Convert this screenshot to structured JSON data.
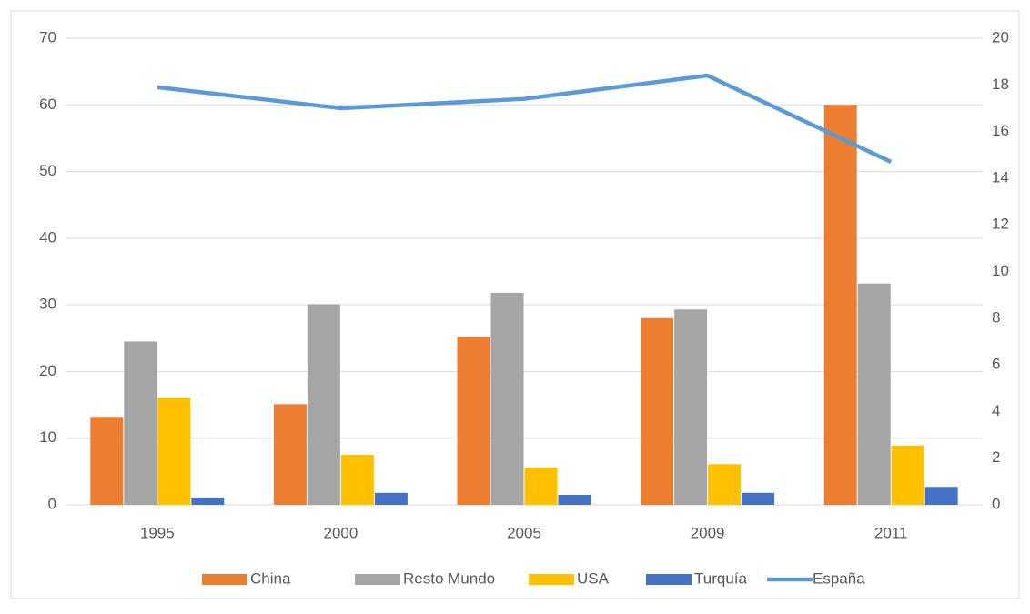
{
  "chart_data": {
    "type": "bar",
    "categories": [
      "1995",
      "2000",
      "2005",
      "2009",
      "2011"
    ],
    "series": [
      {
        "name": "China",
        "color": "#ed7d31",
        "values": [
          13.2,
          15.1,
          25.2,
          28,
          60
        ]
      },
      {
        "name": "Resto Mundo",
        "color": "#a5a5a5",
        "values": [
          24.5,
          30.1,
          31.8,
          29.3,
          33.2
        ]
      },
      {
        "name": "USA",
        "color": "#ffc000",
        "values": [
          16.1,
          7.5,
          5.6,
          6.1,
          8.9
        ]
      },
      {
        "name": "Turquía",
        "color": "#4472c4",
        "values": [
          1.1,
          1.8,
          1.5,
          1.8,
          2.7
        ]
      },
      {
        "name": "España",
        "color": "#5b9bd5",
        "type": "line",
        "axis": "y2",
        "values": [
          17.9,
          17.0,
          17.4,
          18.4,
          14.7
        ]
      }
    ],
    "ylim": [
      0,
      70
    ],
    "yticks": [
      0,
      10,
      20,
      30,
      40,
      50,
      60,
      70
    ],
    "y2lim": [
      0,
      20
    ],
    "y2ticks": [
      0,
      2,
      4,
      6,
      8,
      10,
      12,
      14,
      16,
      18,
      20
    ],
    "grid": true,
    "legend": "bottom"
  }
}
